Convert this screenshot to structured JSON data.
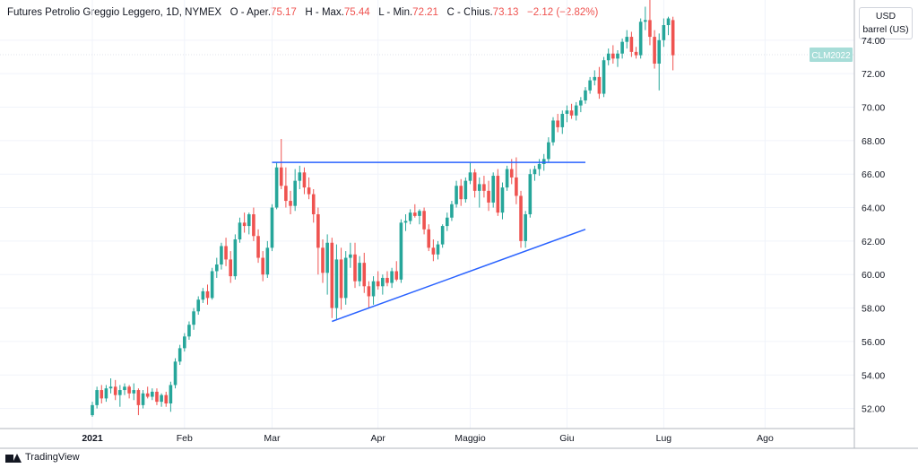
{
  "header": {
    "name": "Futures Petrolio Greggio Leggero, 1D, NYMEX",
    "o_label": "O - Aper.",
    "o_value": "75.17",
    "h_label": "H - Max.",
    "h_value": "75.44",
    "l_label": "L - Min.",
    "l_value": "72.21",
    "c_label": "C - Chius.",
    "c_value": "73.13",
    "change": "−2.12 (−2.82%)"
  },
  "unit": {
    "currency": "USD",
    "measure": "barrel (US)"
  },
  "footer": {
    "brand": "TradingView"
  },
  "colors": {
    "up": "#26a69a",
    "down": "#ef5350",
    "trendline": "#2962ff",
    "grid": "#f0f3fa",
    "axis_text": "#131722",
    "symbol_badge": "#a7ddd8"
  },
  "icons": {
    "brand_logo": "tradingview-logo-icon"
  },
  "chart_data": {
    "type": "candlestick",
    "symbol_badge": "CLM2022",
    "symbol_badge_value": 73.13,
    "ylim": [
      50.8,
      76.4
    ],
    "y_ticks": [
      52,
      54,
      56,
      58,
      60,
      62,
      64,
      66,
      68,
      70,
      72,
      74
    ],
    "x_ticks": [
      {
        "label": "2021",
        "bar": 0
      },
      {
        "label": "Feb",
        "bar": 20
      },
      {
        "label": "Mar",
        "bar": 39
      },
      {
        "label": "Apr",
        "bar": 62
      },
      {
        "label": "Maggio",
        "bar": 82
      },
      {
        "label": "Giu",
        "bar": 103
      },
      {
        "label": "Lug",
        "bar": 124
      },
      {
        "label": "Ago",
        "bar": 146
      }
    ],
    "bars_per_axis": 157,
    "candles": [
      [
        51.6,
        52.4,
        51.5,
        52.2
      ],
      [
        52.2,
        53.3,
        52.0,
        53.1
      ],
      [
        53.1,
        53.4,
        52.3,
        52.6
      ],
      [
        52.6,
        53.4,
        52.4,
        53.2
      ],
      [
        53.2,
        53.8,
        52.9,
        53.3
      ],
      [
        53.3,
        53.7,
        52.5,
        52.8
      ],
      [
        52.8,
        53.4,
        52.1,
        53.1
      ],
      [
        53.1,
        53.5,
        52.8,
        53.3
      ],
      [
        53.3,
        53.4,
        52.6,
        52.9
      ],
      [
        52.9,
        53.5,
        52.5,
        53.1
      ],
      [
        53.1,
        53.2,
        51.6,
        52.2
      ],
      [
        52.2,
        53.1,
        52.0,
        52.9
      ],
      [
        52.9,
        53.3,
        52.6,
        52.7
      ],
      [
        52.7,
        53.2,
        52.5,
        53.0
      ],
      [
        53.0,
        53.2,
        52.2,
        52.4
      ],
      [
        52.4,
        52.9,
        52.1,
        52.8
      ],
      [
        52.8,
        53.0,
        52.1,
        52.3
      ],
      [
        52.3,
        53.6,
        51.8,
        53.4
      ],
      [
        53.4,
        55.0,
        53.2,
        54.8
      ],
      [
        54.8,
        55.8,
        54.6,
        55.6
      ],
      [
        55.6,
        56.5,
        55.4,
        56.3
      ],
      [
        56.3,
        57.2,
        56.1,
        57.0
      ],
      [
        57.0,
        58.0,
        56.7,
        57.8
      ],
      [
        57.8,
        58.7,
        57.6,
        58.5
      ],
      [
        58.5,
        59.2,
        58.3,
        59.0
      ],
      [
        59.0,
        59.4,
        58.2,
        58.6
      ],
      [
        58.6,
        60.4,
        58.5,
        60.2
      ],
      [
        60.2,
        61.0,
        59.8,
        60.6
      ],
      [
        60.6,
        61.9,
        60.3,
        61.7
      ],
      [
        61.7,
        62.2,
        60.5,
        60.9
      ],
      [
        60.9,
        61.4,
        59.5,
        59.9
      ],
      [
        59.9,
        62.4,
        59.7,
        62.1
      ],
      [
        62.1,
        63.4,
        61.9,
        63.1
      ],
      [
        63.1,
        63.7,
        62.5,
        62.9
      ],
      [
        62.9,
        63.7,
        62.4,
        63.6
      ],
      [
        63.6,
        64.0,
        62.0,
        62.3
      ],
      [
        62.3,
        62.7,
        60.7,
        61.0
      ],
      [
        61.0,
        61.4,
        59.6,
        60.0
      ],
      [
        60.0,
        62.0,
        59.8,
        61.6
      ],
      [
        61.6,
        64.2,
        61.4,
        64.0
      ],
      [
        64.0,
        66.7,
        63.9,
        66.4
      ],
      [
        66.4,
        68.1,
        65.1,
        65.3
      ],
      [
        65.3,
        66.4,
        64.0,
        64.4
      ],
      [
        64.4,
        65.0,
        63.6,
        64.1
      ],
      [
        64.1,
        66.3,
        63.8,
        65.6
      ],
      [
        65.6,
        66.5,
        65.1,
        66.1
      ],
      [
        66.1,
        66.4,
        64.8,
        65.2
      ],
      [
        65.2,
        65.8,
        64.5,
        64.8
      ],
      [
        64.8,
        65.1,
        63.1,
        63.6
      ],
      [
        63.6,
        64.0,
        60.0,
        61.6
      ],
      [
        61.6,
        62.1,
        59.5,
        60.1
      ],
      [
        60.1,
        62.4,
        58.8,
        61.9
      ],
      [
        61.9,
        62.2,
        57.4,
        58.0
      ],
      [
        58.0,
        61.8,
        57.3,
        60.9
      ],
      [
        60.9,
        61.6,
        57.9,
        58.6
      ],
      [
        58.6,
        61.4,
        58.2,
        61.0
      ],
      [
        61.0,
        61.9,
        60.4,
        61.2
      ],
      [
        61.2,
        61.9,
        59.2,
        59.6
      ],
      [
        59.6,
        61.1,
        59.3,
        60.7
      ],
      [
        60.7,
        61.3,
        58.9,
        59.3
      ],
      [
        59.3,
        59.6,
        58.0,
        58.7
      ],
      [
        58.7,
        59.9,
        58.2,
        59.6
      ],
      [
        59.6,
        60.2,
        59.1,
        59.3
      ],
      [
        59.3,
        60.0,
        58.8,
        59.8
      ],
      [
        59.8,
        60.2,
        59.3,
        59.5
      ],
      [
        59.5,
        60.4,
        59.2,
        60.2
      ],
      [
        60.2,
        60.8,
        59.6,
        59.7
      ],
      [
        59.7,
        63.3,
        59.5,
        63.1
      ],
      [
        63.1,
        63.6,
        62.6,
        63.2
      ],
      [
        63.2,
        63.9,
        63.0,
        63.7
      ],
      [
        63.7,
        64.2,
        63.4,
        63.5
      ],
      [
        63.5,
        63.9,
        63.0,
        63.8
      ],
      [
        63.8,
        64.0,
        62.4,
        62.7
      ],
      [
        62.7,
        63.0,
        61.4,
        61.6
      ],
      [
        61.6,
        62.1,
        60.8,
        61.2
      ],
      [
        61.2,
        62.0,
        60.9,
        61.8
      ],
      [
        61.8,
        63.0,
        61.6,
        62.9
      ],
      [
        62.9,
        63.7,
        62.6,
        63.4
      ],
      [
        63.4,
        64.4,
        63.2,
        64.2
      ],
      [
        64.2,
        65.6,
        64.0,
        65.3
      ],
      [
        65.3,
        65.7,
        64.1,
        64.5
      ],
      [
        64.5,
        65.8,
        64.3,
        65.6
      ],
      [
        65.6,
        66.7,
        65.4,
        66.1
      ],
      [
        66.1,
        66.3,
        64.6,
        65.0
      ],
      [
        65.0,
        65.8,
        64.0,
        65.4
      ],
      [
        65.4,
        65.9,
        64.6,
        65.0
      ],
      [
        65.0,
        65.6,
        63.8,
        64.3
      ],
      [
        64.3,
        66.1,
        64.0,
        65.9
      ],
      [
        65.9,
        66.3,
        63.5,
        63.7
      ],
      [
        63.7,
        65.5,
        63.3,
        65.2
      ],
      [
        65.2,
        66.5,
        65.0,
        66.3
      ],
      [
        66.3,
        66.9,
        65.4,
        65.8
      ],
      [
        65.8,
        67.0,
        64.2,
        64.7
      ],
      [
        64.7,
        65.0,
        61.6,
        62.0
      ],
      [
        62.0,
        63.8,
        61.6,
        63.6
      ],
      [
        63.6,
        66.3,
        63.4,
        66.0
      ],
      [
        66.0,
        66.5,
        65.6,
        66.3
      ],
      [
        66.3,
        66.9,
        65.9,
        66.6
      ],
      [
        66.6,
        67.2,
        66.2,
        66.9
      ],
      [
        66.9,
        68.2,
        66.7,
        67.9
      ],
      [
        67.9,
        69.4,
        67.7,
        69.2
      ],
      [
        69.2,
        69.6,
        68.5,
        68.8
      ],
      [
        68.8,
        69.8,
        68.4,
        69.6
      ],
      [
        69.6,
        70.1,
        69.1,
        69.8
      ],
      [
        69.8,
        70.2,
        69.3,
        69.5
      ],
      [
        69.5,
        70.3,
        69.2,
        70.1
      ],
      [
        70.1,
        70.6,
        69.7,
        70.4
      ],
      [
        70.4,
        71.2,
        70.2,
        71.0
      ],
      [
        71.0,
        71.8,
        70.8,
        71.6
      ],
      [
        71.6,
        72.2,
        71.3,
        71.8
      ],
      [
        71.8,
        72.4,
        70.5,
        70.8
      ],
      [
        70.8,
        73.0,
        70.6,
        72.8
      ],
      [
        72.8,
        73.5,
        72.5,
        73.2
      ],
      [
        73.2,
        73.7,
        72.6,
        72.9
      ],
      [
        72.9,
        73.4,
        72.4,
        73.2
      ],
      [
        73.2,
        74.1,
        72.9,
        73.9
      ],
      [
        73.9,
        74.6,
        73.5,
        74.2
      ],
      [
        74.2,
        74.5,
        73.0,
        73.3
      ],
      [
        73.3,
        73.6,
        72.9,
        73.1
      ],
      [
        73.1,
        75.3,
        72.9,
        75.1
      ],
      [
        75.1,
        76.0,
        74.6,
        75.2
      ],
      [
        75.2,
        76.4,
        73.7,
        74.2
      ],
      [
        74.2,
        74.6,
        72.3,
        72.6
      ],
      [
        72.6,
        74.4,
        71.0,
        74.0
      ],
      [
        74.0,
        75.3,
        73.6,
        74.9
      ],
      [
        74.9,
        75.4,
        74.3,
        75.3
      ],
      [
        75.2,
        75.4,
        72.2,
        73.1
      ]
    ],
    "trendlines": [
      {
        "name": "resistance",
        "from": {
          "bar": 39,
          "value": 66.7
        },
        "to": {
          "bar": 107,
          "value": 66.7
        }
      },
      {
        "name": "support",
        "from": {
          "bar": 52,
          "value": 57.2
        },
        "to": {
          "bar": 107,
          "value": 62.7
        }
      }
    ]
  }
}
